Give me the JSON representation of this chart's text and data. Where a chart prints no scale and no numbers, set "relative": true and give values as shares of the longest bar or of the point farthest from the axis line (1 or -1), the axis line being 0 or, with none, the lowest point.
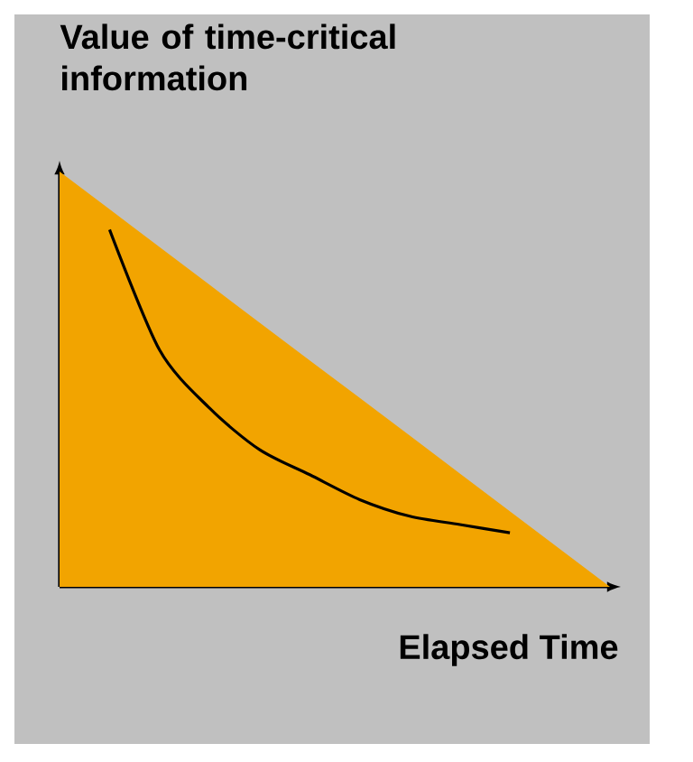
{
  "chart_data": {
    "type": "area",
    "ylabel": "Value of time-critical information",
    "xlabel": "Elapsed Time",
    "relative": true,
    "categories": [
      null,
      null,
      null,
      null,
      null,
      null,
      null,
      null,
      null,
      null,
      null,
      null
    ],
    "series": [
      {
        "color": "#f2a400",
        "values": [
          1,
          0.909,
          0.818,
          0.727,
          0.636,
          0.545,
          0.455,
          0.364,
          0.273,
          0.182,
          0.091,
          0
        ]
      },
      {
        "type": "line",
        "color": "#000000",
        "values": [
          null,
          0.86,
          0.57,
          0.43,
          0.33,
          0.27,
          0.21,
          0.17,
          0.15,
          0.13,
          null,
          null
        ]
      }
    ]
  }
}
